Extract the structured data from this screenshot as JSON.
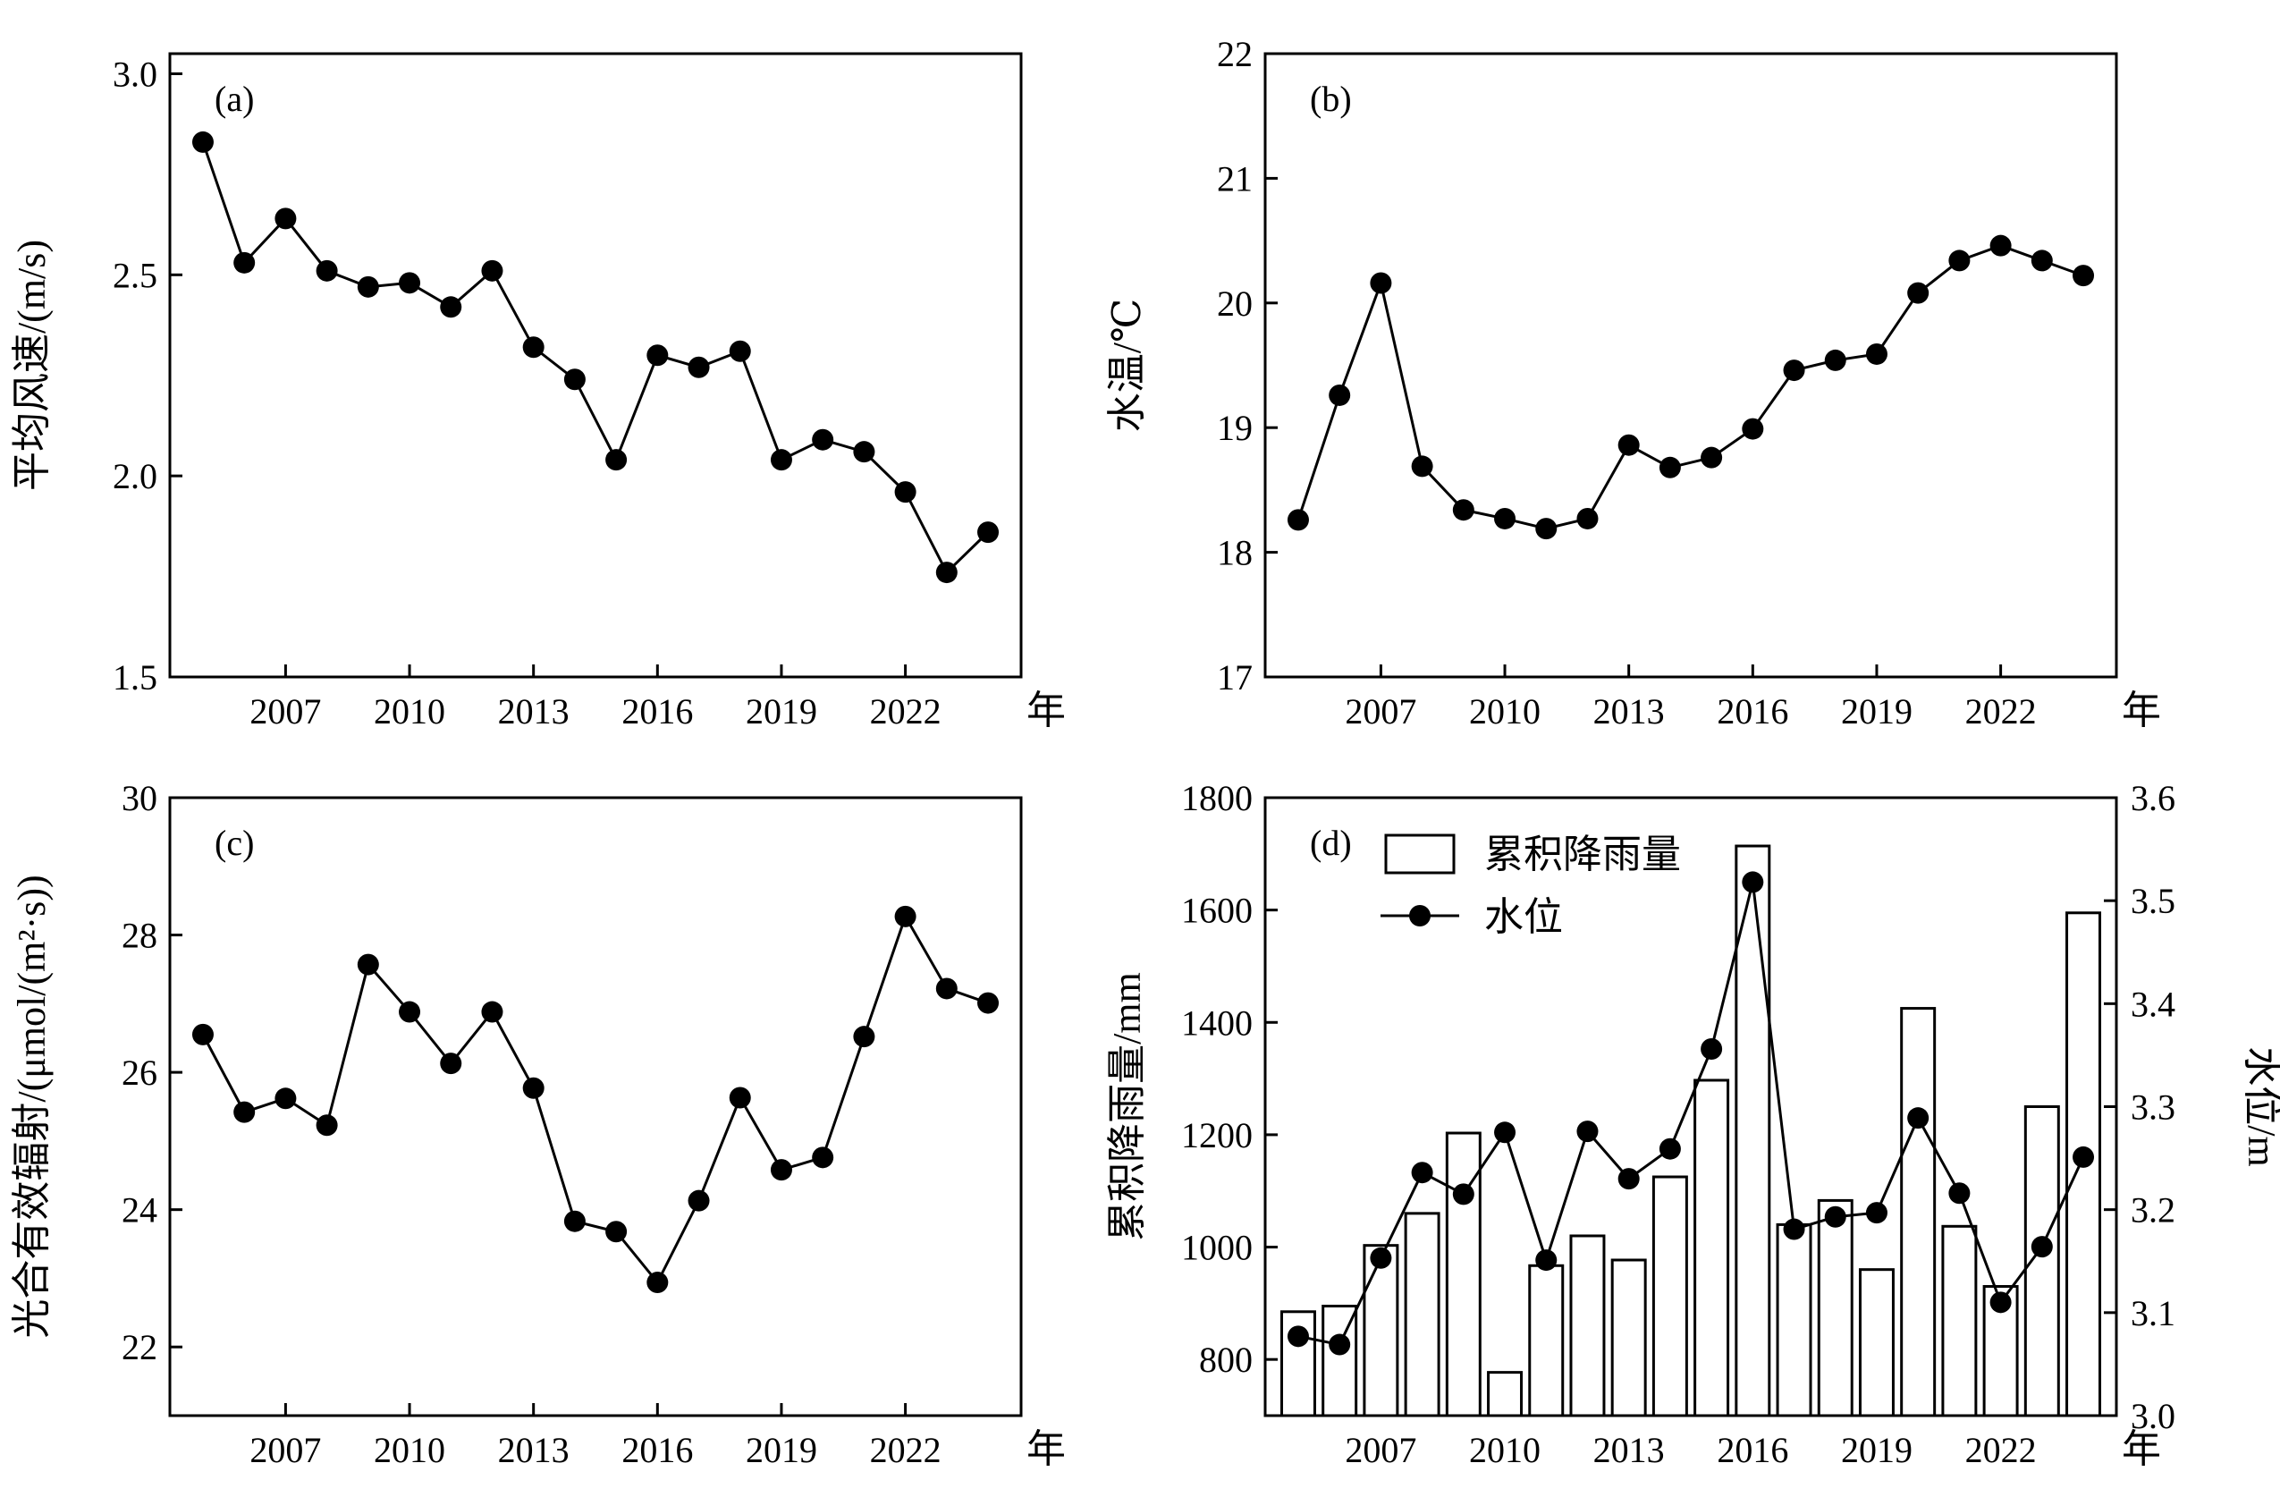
{
  "figure": {
    "year_unit": "年",
    "x_ticks": [
      "2007",
      "2010",
      "2013",
      "2016",
      "2019",
      "2022"
    ]
  },
  "chart_data": [
    {
      "id": "a",
      "type": "line",
      "panel_label": "(a)",
      "ylabel": "平均风速/(m/s)",
      "ylim": [
        1.5,
        3.05
      ],
      "yticks": [
        1.5,
        2.0,
        2.5,
        3.0
      ],
      "ytick_labels": [
        "1.5",
        "2.0",
        "2.5",
        "3.0"
      ],
      "x": [
        2005,
        2006,
        2007,
        2008,
        2009,
        2010,
        2011,
        2012,
        2013,
        2014,
        2015,
        2016,
        2017,
        2018,
        2019,
        2020,
        2021,
        2022,
        2023,
        2024
      ],
      "values": [
        2.83,
        2.53,
        2.64,
        2.51,
        2.47,
        2.48,
        2.42,
        2.51,
        2.32,
        2.24,
        2.04,
        2.3,
        2.27,
        2.31,
        2.04,
        2.09,
        2.06,
        1.96,
        1.76,
        1.86
      ]
    },
    {
      "id": "b",
      "type": "line",
      "panel_label": "(b)",
      "ylabel": "水温/℃",
      "ylim": [
        17,
        22
      ],
      "yticks": [
        17,
        18,
        19,
        20,
        21,
        22
      ],
      "ytick_labels": [
        "17",
        "18",
        "19",
        "20",
        "21",
        "22"
      ],
      "x": [
        2005,
        2006,
        2007,
        2008,
        2009,
        2010,
        2011,
        2012,
        2013,
        2014,
        2015,
        2016,
        2017,
        2018,
        2019,
        2020,
        2021,
        2022,
        2023,
        2024
      ],
      "values": [
        18.26,
        19.26,
        20.16,
        18.69,
        18.34,
        18.27,
        18.19,
        18.27,
        18.86,
        18.68,
        18.76,
        18.99,
        19.46,
        19.54,
        19.59,
        20.08,
        20.34,
        20.46,
        20.34,
        20.22
      ]
    },
    {
      "id": "c",
      "type": "line",
      "panel_label": "(c)",
      "ylabel": "光合有效辐射/(μmol/(m²·s))",
      "ylim": [
        21,
        30
      ],
      "yticks": [
        22,
        24,
        26,
        28,
        30
      ],
      "ytick_labels": [
        "22",
        "24",
        "26",
        "28",
        "30"
      ],
      "x": [
        2005,
        2006,
        2007,
        2008,
        2009,
        2010,
        2011,
        2012,
        2013,
        2014,
        2015,
        2016,
        2017,
        2018,
        2019,
        2020,
        2021,
        2022,
        2023,
        2024
      ],
      "values": [
        26.55,
        25.42,
        25.62,
        25.23,
        27.57,
        26.88,
        26.13,
        26.88,
        25.77,
        23.83,
        23.68,
        22.94,
        24.13,
        25.63,
        24.58,
        24.76,
        26.52,
        28.27,
        27.22,
        27.01
      ]
    },
    {
      "id": "d",
      "type": "bar+line",
      "panel_label": "(d)",
      "ylabel": "累积降雨量/mm",
      "ylabel_right": "水位/m",
      "ylim": [
        700,
        1800
      ],
      "yticks": [
        800,
        1000,
        1200,
        1400,
        1600,
        1800
      ],
      "ytick_labels": [
        "800",
        "1000",
        "1200",
        "1400",
        "1600",
        "1800"
      ],
      "ylim_right": [
        3.0,
        3.6
      ],
      "yticks_right": [
        3.0,
        3.1,
        3.2,
        3.3,
        3.4,
        3.5,
        3.6
      ],
      "ytick_labels_right": [
        "3.0",
        "3.1",
        "3.2",
        "3.3",
        "3.4",
        "3.5",
        "3.6"
      ],
      "legend": {
        "placement": "top-left",
        "bar_label": "累积降雨量",
        "line_label": "水位"
      },
      "x": [
        2005,
        2006,
        2007,
        2008,
        2009,
        2010,
        2011,
        2012,
        2013,
        2014,
        2015,
        2016,
        2017,
        2018,
        2019,
        2020,
        2021,
        2022,
        2023,
        2024
      ],
      "series": [
        {
          "name": "累积降雨量",
          "type": "bar",
          "axis": "left",
          "values": [
            885,
            895,
            1003,
            1060,
            1203,
            777,
            967,
            1020,
            977,
            1125,
            1297,
            1714,
            1040,
            1083,
            960,
            1425,
            1037,
            930,
            1250,
            1595
          ]
        },
        {
          "name": "水位",
          "type": "line",
          "axis": "right",
          "values": [
            3.077,
            3.069,
            3.153,
            3.236,
            3.215,
            3.275,
            3.151,
            3.276,
            3.23,
            3.259,
            3.356,
            3.518,
            3.181,
            3.193,
            3.197,
            3.289,
            3.216,
            3.11,
            3.164,
            3.251
          ]
        }
      ]
    }
  ]
}
